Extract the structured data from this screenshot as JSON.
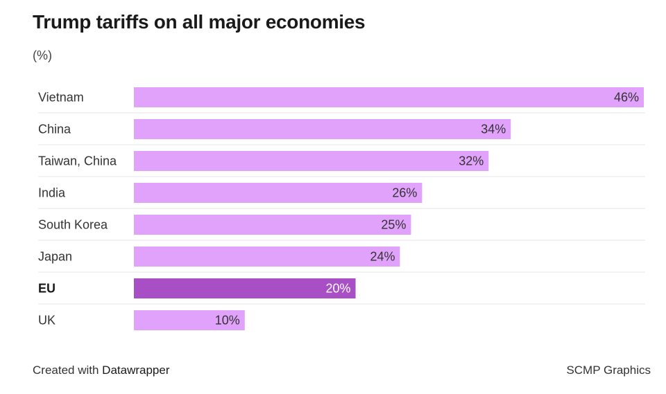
{
  "chart_data": {
    "type": "bar",
    "orientation": "horizontal",
    "title": "Trump tariffs on all major economies",
    "subtitle": "(%)",
    "unit": "%",
    "xlim": [
      0,
      46
    ],
    "categories": [
      "Vietnam",
      "China",
      "Taiwan, China",
      "India",
      "South Korea",
      "Japan",
      "EU",
      "UK"
    ],
    "values": [
      46,
      34,
      32,
      26,
      25,
      24,
      20,
      10
    ],
    "value_labels": [
      "46%",
      "34%",
      "32%",
      "26%",
      "25%",
      "24%",
      "20%",
      "10%"
    ],
    "highlight": "EU",
    "colors": {
      "bar": "#e0a2fb",
      "highlight": "#a94fc6",
      "label_dark": "#333333",
      "label_light": "#ffffff",
      "separator": "#e6e6e6"
    }
  },
  "footer": {
    "credit_prefix": "Created with ",
    "credit_brand": "Datawrapper",
    "source": "SCMP Graphics"
  }
}
